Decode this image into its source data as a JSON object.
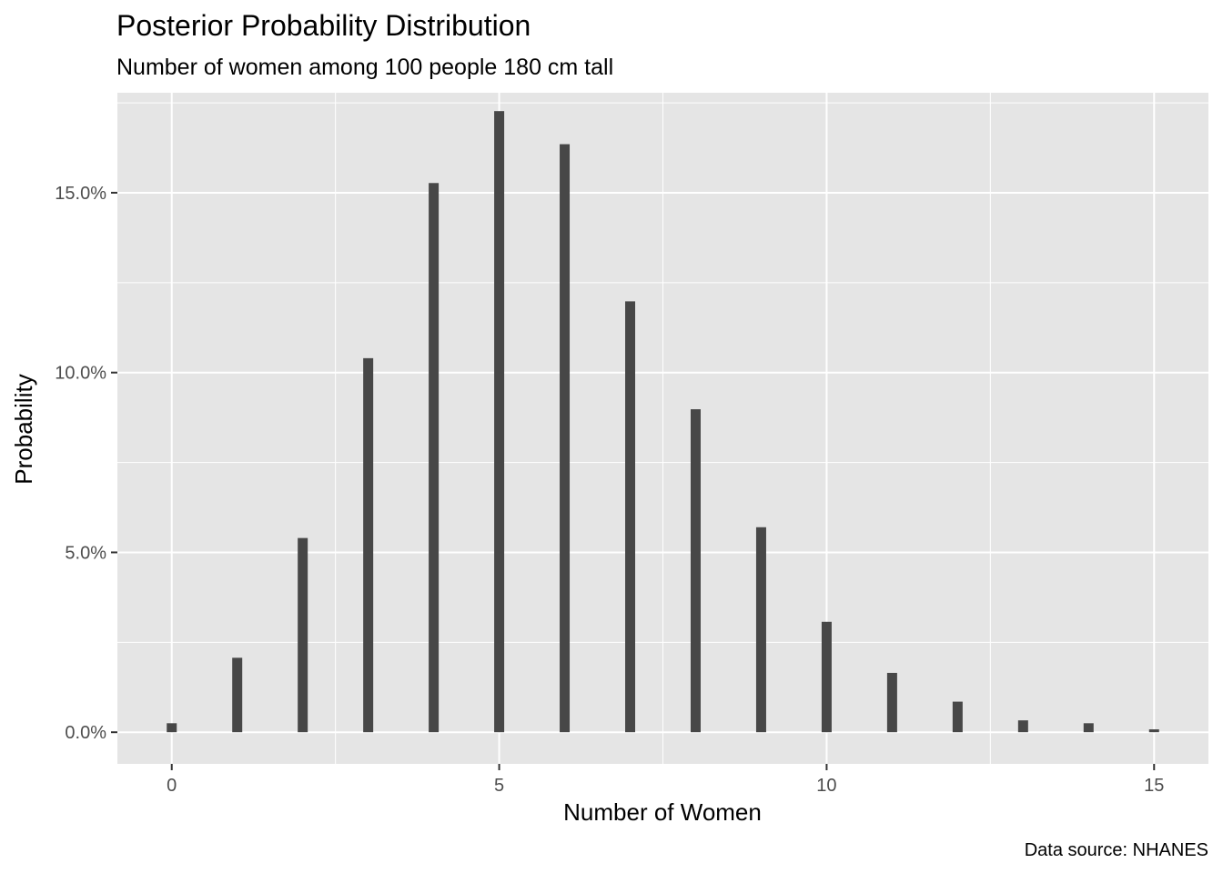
{
  "chart_data": {
    "type": "bar",
    "title": "Posterior Probability Distribution",
    "subtitle": "Number of women among 100 people 180 cm tall",
    "xlabel": "Number of Women",
    "ylabel": "Probability",
    "caption": "Data source: NHANES",
    "x": [
      0,
      1,
      2,
      3,
      4,
      5,
      6,
      7,
      8,
      9,
      10,
      11,
      12,
      13,
      14,
      15
    ],
    "values": [
      0.0025,
      0.0207,
      0.054,
      0.104,
      0.1527,
      0.1727,
      0.1635,
      0.1198,
      0.0898,
      0.057,
      0.0307,
      0.0165,
      0.0085,
      0.0033,
      0.0025,
      0.0008
    ],
    "xlim": [
      -0.83,
      15.83
    ],
    "ylim": [
      -0.0088,
      0.1778
    ],
    "x_ticks": [
      0,
      5,
      10,
      15
    ],
    "x_tick_labels": [
      "0",
      "5",
      "10",
      "15"
    ],
    "y_ticks": [
      0,
      0.05,
      0.1,
      0.15
    ],
    "y_tick_labels": [
      "0.0%",
      "5.0%",
      "10.0%",
      "15.0%"
    ],
    "grid": true,
    "colors": {
      "bar": "#474747",
      "panel": "#e5e5e5",
      "grid": "#ffffff"
    }
  }
}
